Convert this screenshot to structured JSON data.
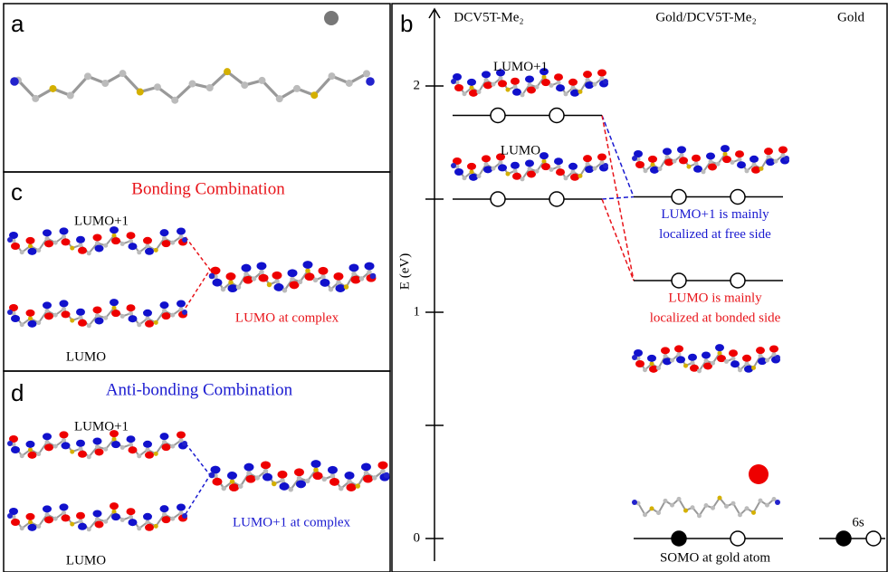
{
  "panels": {
    "a": {
      "label": "a"
    },
    "c": {
      "label": "c",
      "title": "Bonding Combination",
      "orbital_upper": "LUMO+1",
      "orbital_lower": "LUMO",
      "result": "LUMO at complex"
    },
    "d": {
      "label": "d",
      "title": "Anti-bonding Combination",
      "orbital_upper": "LUMO+1",
      "orbital_lower": "LUMO",
      "result": "LUMO+1 at complex"
    },
    "b": {
      "label": "b",
      "y_axis_label": "E (eV)",
      "ylim": [
        -0.1,
        2.34
      ],
      "yticks": [
        0,
        1,
        2
      ],
      "minor_yticks": [
        0.5,
        1.5
      ],
      "bonding_color": "#e8141a",
      "antibonding_color": "#1a1ad0",
      "columns": [
        {
          "name": "DCV5T-Me₂",
          "levels": [
            {
              "energy": 1.87,
              "label": "LUMO+1",
              "filled": [
                false,
                false
              ]
            },
            {
              "energy": 1.5,
              "label": "LUMO",
              "filled": [
                false,
                false
              ]
            }
          ]
        },
        {
          "name": "Gold/DCV5T-Me₂",
          "levels": [
            {
              "energy": 1.51,
              "note": [
                "LUMO+1 is mainly",
                "localized at free side"
              ],
              "filled": [
                false,
                false
              ]
            },
            {
              "energy": 1.14,
              "note": [
                "LUMO is mainly",
                "localized at bonded side"
              ],
              "filled": [
                false,
                false
              ]
            },
            {
              "energy": 0,
              "note": [
                "SOMO at gold atom"
              ],
              "filled": [
                true,
                false
              ]
            }
          ]
        },
        {
          "name": "Gold",
          "levels": [
            {
              "energy": 0,
              "label": "6s",
              "filled": [
                true,
                false
              ]
            }
          ]
        }
      ]
    }
  }
}
